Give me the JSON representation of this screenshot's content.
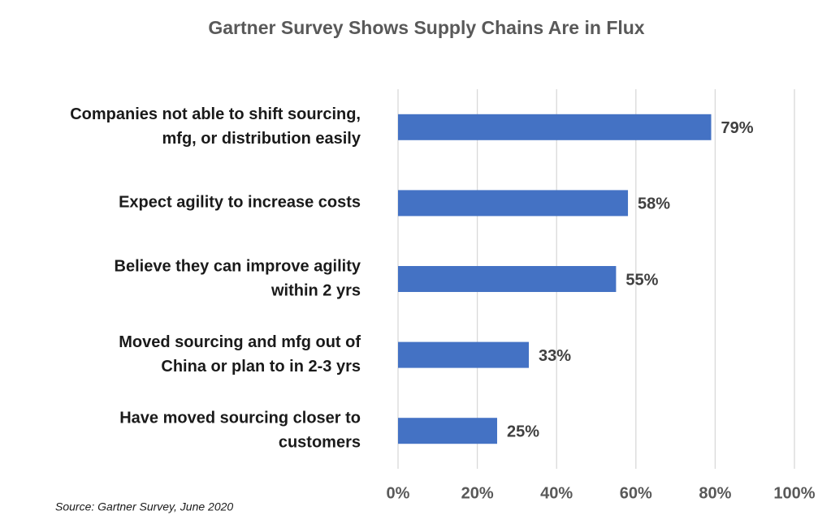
{
  "chart_data": {
    "type": "bar",
    "orientation": "horizontal",
    "title": "Gartner Survey Shows Supply Chains Are in Flux",
    "categories": [
      [
        "Companies not able to shift sourcing,",
        "mfg, or distribution easily"
      ],
      [
        "Expect agility to increase costs"
      ],
      [
        "Believe they can improve agility",
        "within 2 yrs"
      ],
      [
        "Moved sourcing and mfg out of",
        "China or plan to in 2-3 yrs"
      ],
      [
        "Have moved sourcing closer to",
        "customers"
      ]
    ],
    "values": [
      79,
      58,
      55,
      33,
      25
    ],
    "value_labels": [
      "79%",
      "58%",
      "55%",
      "33%",
      "25%"
    ],
    "color": "#4472c4",
    "xlim": [
      0,
      100
    ],
    "xticks": [
      {
        "value": 0,
        "label": "0%"
      },
      {
        "value": 20,
        "label": "20%"
      },
      {
        "value": 40,
        "label": "40%"
      },
      {
        "value": 60,
        "label": "60%"
      },
      {
        "value": 80,
        "label": "80%"
      },
      {
        "value": 100,
        "label": "100%"
      }
    ],
    "grid": true,
    "source": "Source: Gartner Survey, June 2020"
  }
}
